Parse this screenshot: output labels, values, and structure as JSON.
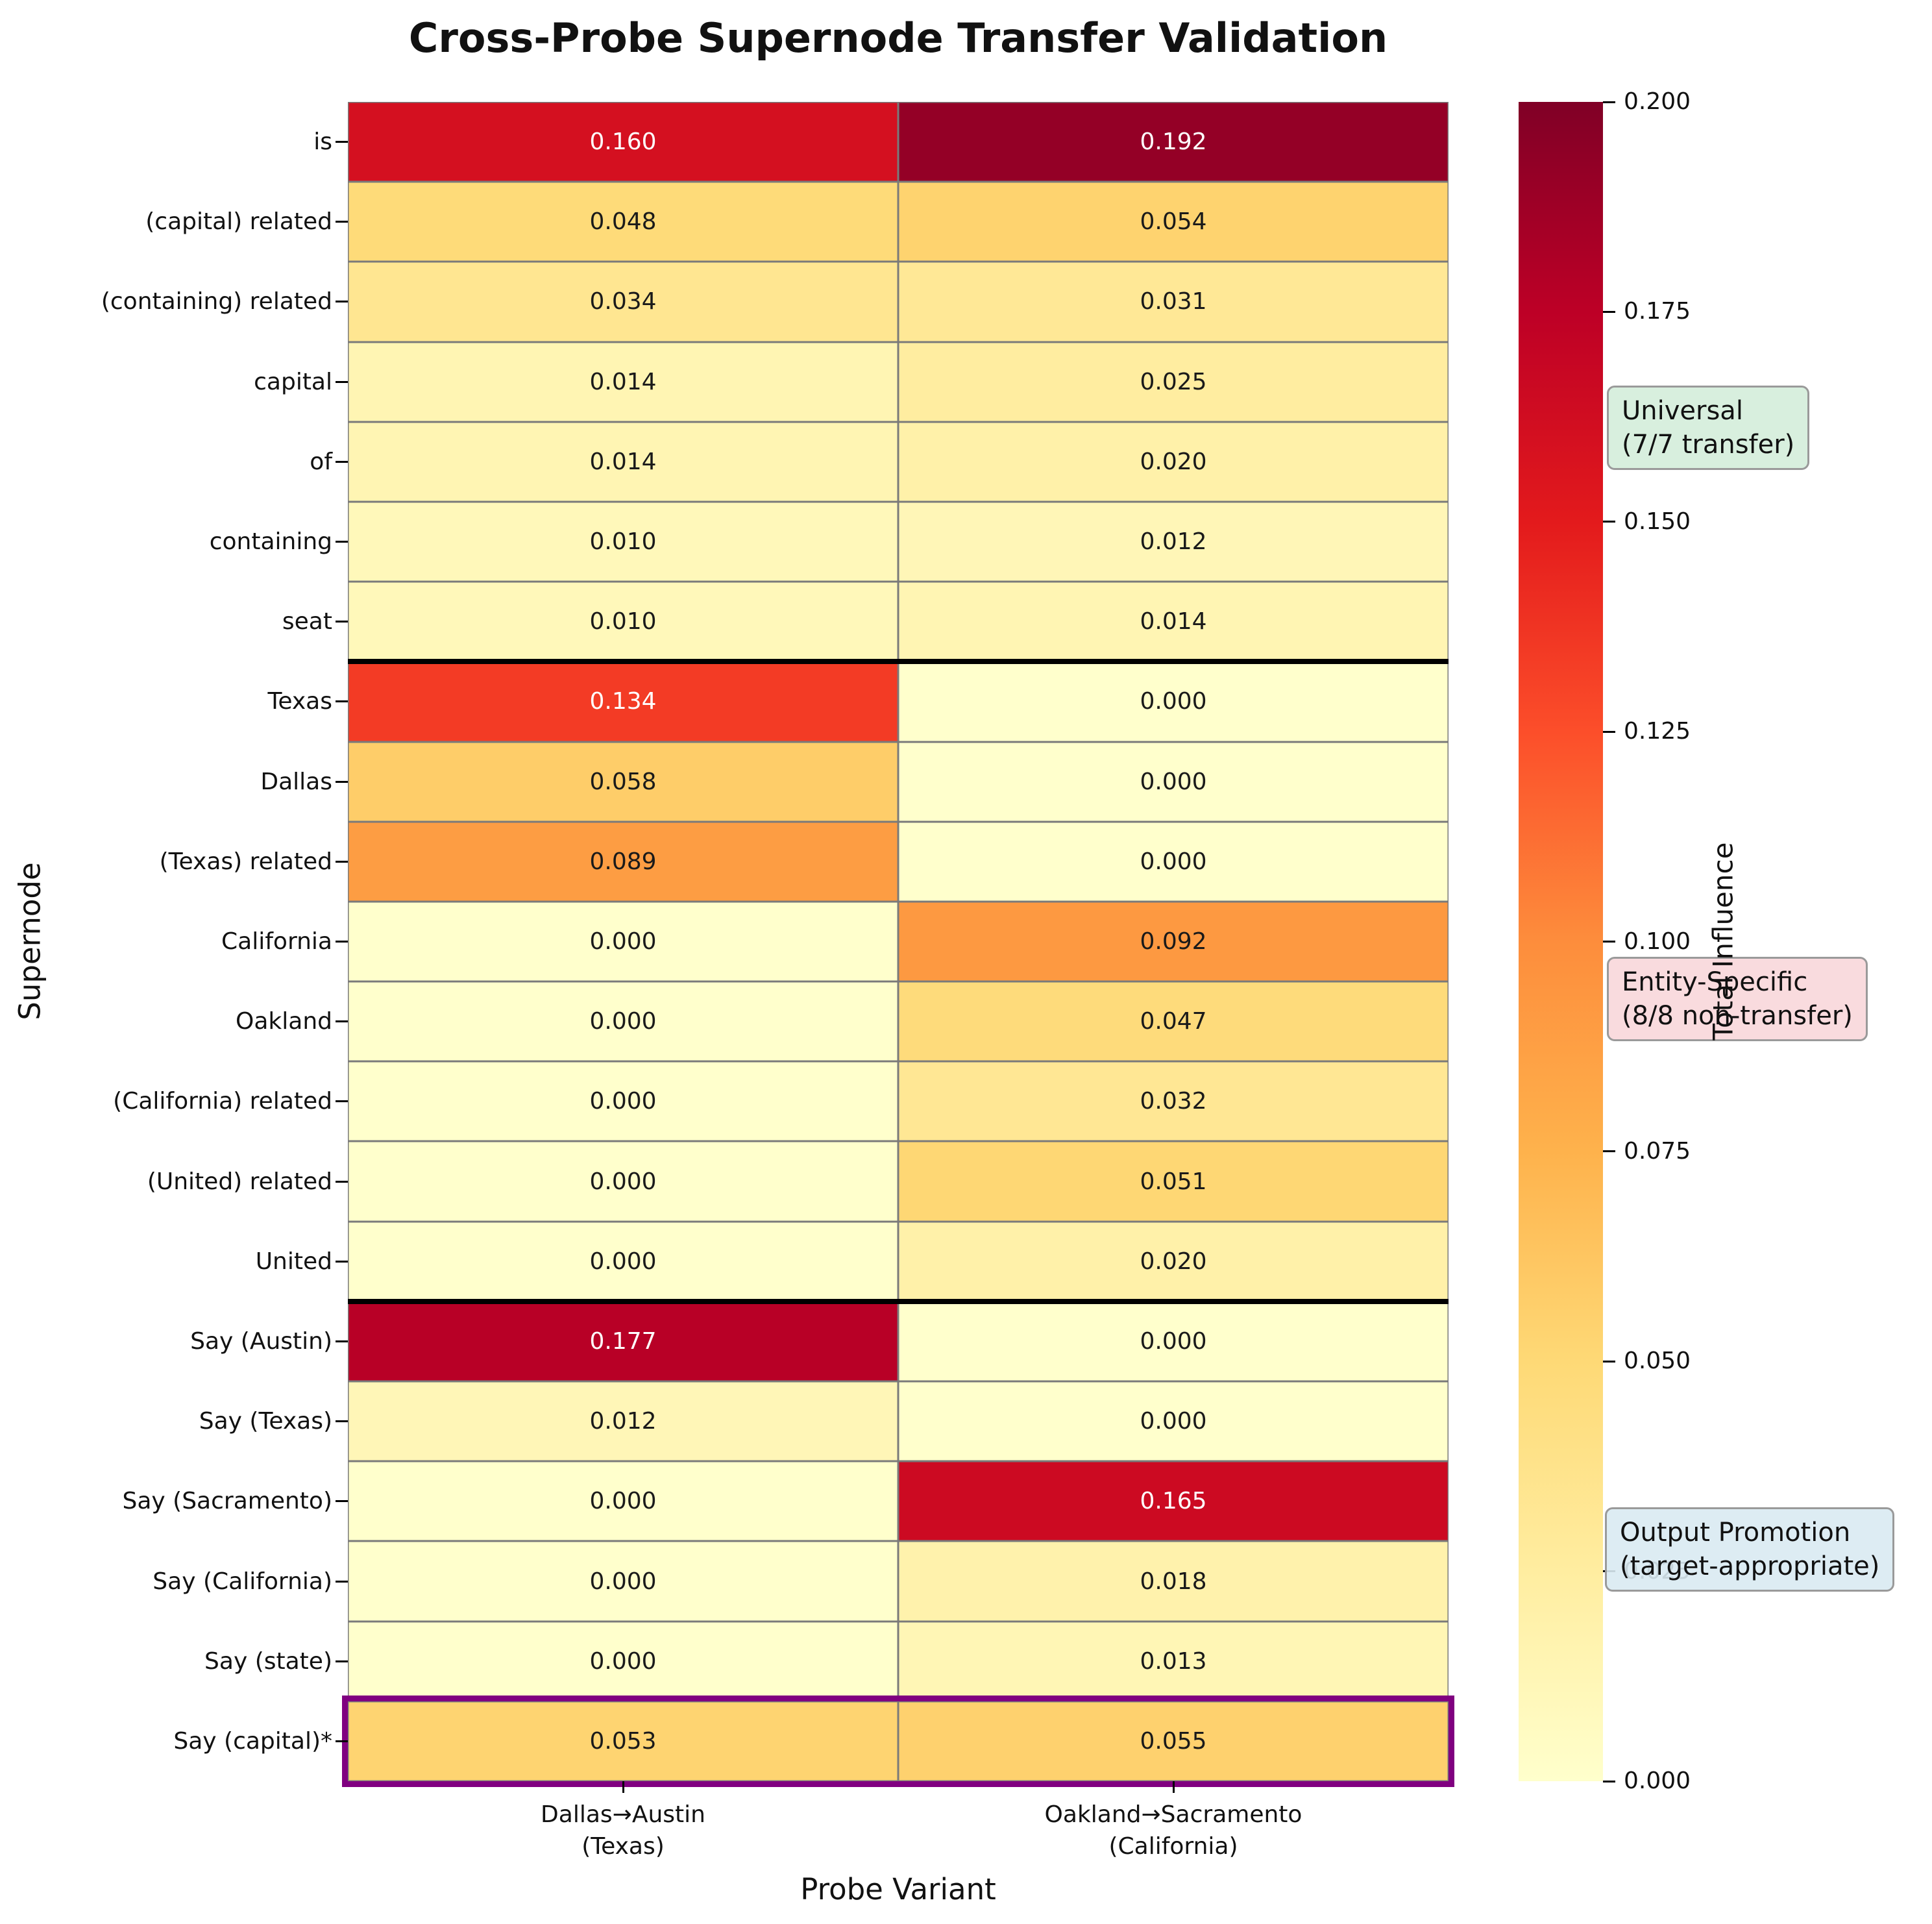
{
  "chart_data": {
    "type": "heatmap",
    "title": "Cross-Probe Supernode Transfer Validation",
    "xlabel": "Probe Variant",
    "ylabel": "Supernode",
    "columns": [
      "Dallas→Austin\n(Texas)",
      "Oakland→Sacramento\n(California)"
    ],
    "rows": [
      "is",
      "(capital) related",
      "(containing) related",
      "capital",
      "of",
      "containing",
      "seat",
      "Texas",
      "Dallas",
      "(Texas) related",
      "California",
      "Oakland",
      "(California) related",
      "(United) related",
      "United",
      "Say (Austin)",
      "Say (Texas)",
      "Say (Sacramento)",
      "Say (California)",
      "Say (state)",
      "Say (capital)*"
    ],
    "values": [
      [
        0.16,
        0.192
      ],
      [
        0.048,
        0.054
      ],
      [
        0.034,
        0.031
      ],
      [
        0.014,
        0.025
      ],
      [
        0.014,
        0.02
      ],
      [
        0.01,
        0.012
      ],
      [
        0.01,
        0.014
      ],
      [
        0.134,
        0.0
      ],
      [
        0.058,
        0.0
      ],
      [
        0.089,
        0.0
      ],
      [
        0.0,
        0.092
      ],
      [
        0.0,
        0.047
      ],
      [
        0.0,
        0.032
      ],
      [
        0.0,
        0.051
      ],
      [
        0.0,
        0.02
      ],
      [
        0.177,
        0.0
      ],
      [
        0.012,
        0.0
      ],
      [
        0.0,
        0.165
      ],
      [
        0.0,
        0.018
      ],
      [
        0.0,
        0.013
      ],
      [
        0.053,
        0.055
      ]
    ],
    "vmin": 0.0,
    "vmax": 0.2,
    "colorbar": {
      "label": "Total Influence",
      "ticks": [
        0.0,
        0.025,
        0.05,
        0.075,
        0.1,
        0.125,
        0.15,
        0.175,
        0.2
      ]
    },
    "group_separators_after_rows": [
      6,
      14
    ],
    "highlight_row_index": 20,
    "annotations": [
      {
        "id": "universal",
        "text": "Universal\n(7/7 transfer)",
        "bg_color": "#d4edda"
      },
      {
        "id": "entity-specific",
        "text": "Entity-Specific\n(8/8 non-transfer)",
        "bg_color": "#f8d7da"
      },
      {
        "id": "output-promotion",
        "text": "Output Promotion\n(target-appropriate)",
        "bg_color": "#d9eaf2"
      }
    ],
    "colorscale": [
      {
        "pos": 0.0,
        "color": "#ffffcc"
      },
      {
        "pos": 0.125,
        "color": "#ffeda0"
      },
      {
        "pos": 0.25,
        "color": "#fed976"
      },
      {
        "pos": 0.375,
        "color": "#feb24c"
      },
      {
        "pos": 0.5,
        "color": "#fd8d3c"
      },
      {
        "pos": 0.625,
        "color": "#fc4e2a"
      },
      {
        "pos": 0.75,
        "color": "#e31a1c"
      },
      {
        "pos": 0.875,
        "color": "#bd0026"
      },
      {
        "pos": 1.0,
        "color": "#800026"
      }
    ],
    "styles": {
      "grid_color": "#7a7a7a",
      "separator_color": "#000000",
      "highlight_color": "#800080",
      "white_text_threshold": 0.1,
      "cell_text_light": "#ffffff",
      "cell_text_dark": "#1a1a1a"
    }
  }
}
